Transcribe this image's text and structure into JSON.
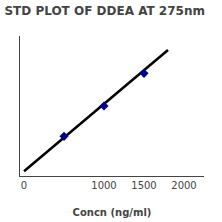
{
  "chart_data": {
    "type": "scatter",
    "title": "STD PLOT OF DDEA AT 275nm",
    "xlabel": "Concn (ng/ml)",
    "series": [
      {
        "type": "line",
        "color": "#000000",
        "line_style": "solid",
        "x": [
          0,
          1800
        ],
        "values": [
          0.0,
          0.52
        ]
      },
      {
        "type": "scatter",
        "color": "#00008B",
        "marker": "diamond",
        "x": [
          500,
          1000,
          1500
        ],
        "values": [
          0.15,
          0.28,
          0.42
        ]
      }
    ],
    "xlim": [
      -50,
      2250
    ],
    "xticks": [
      0,
      1000,
      1500,
      2000
    ],
    "ylim": [
      -0.02,
      0.58
    ],
    "yticks": [],
    "tick_labels": "x",
    "grid": false
  }
}
